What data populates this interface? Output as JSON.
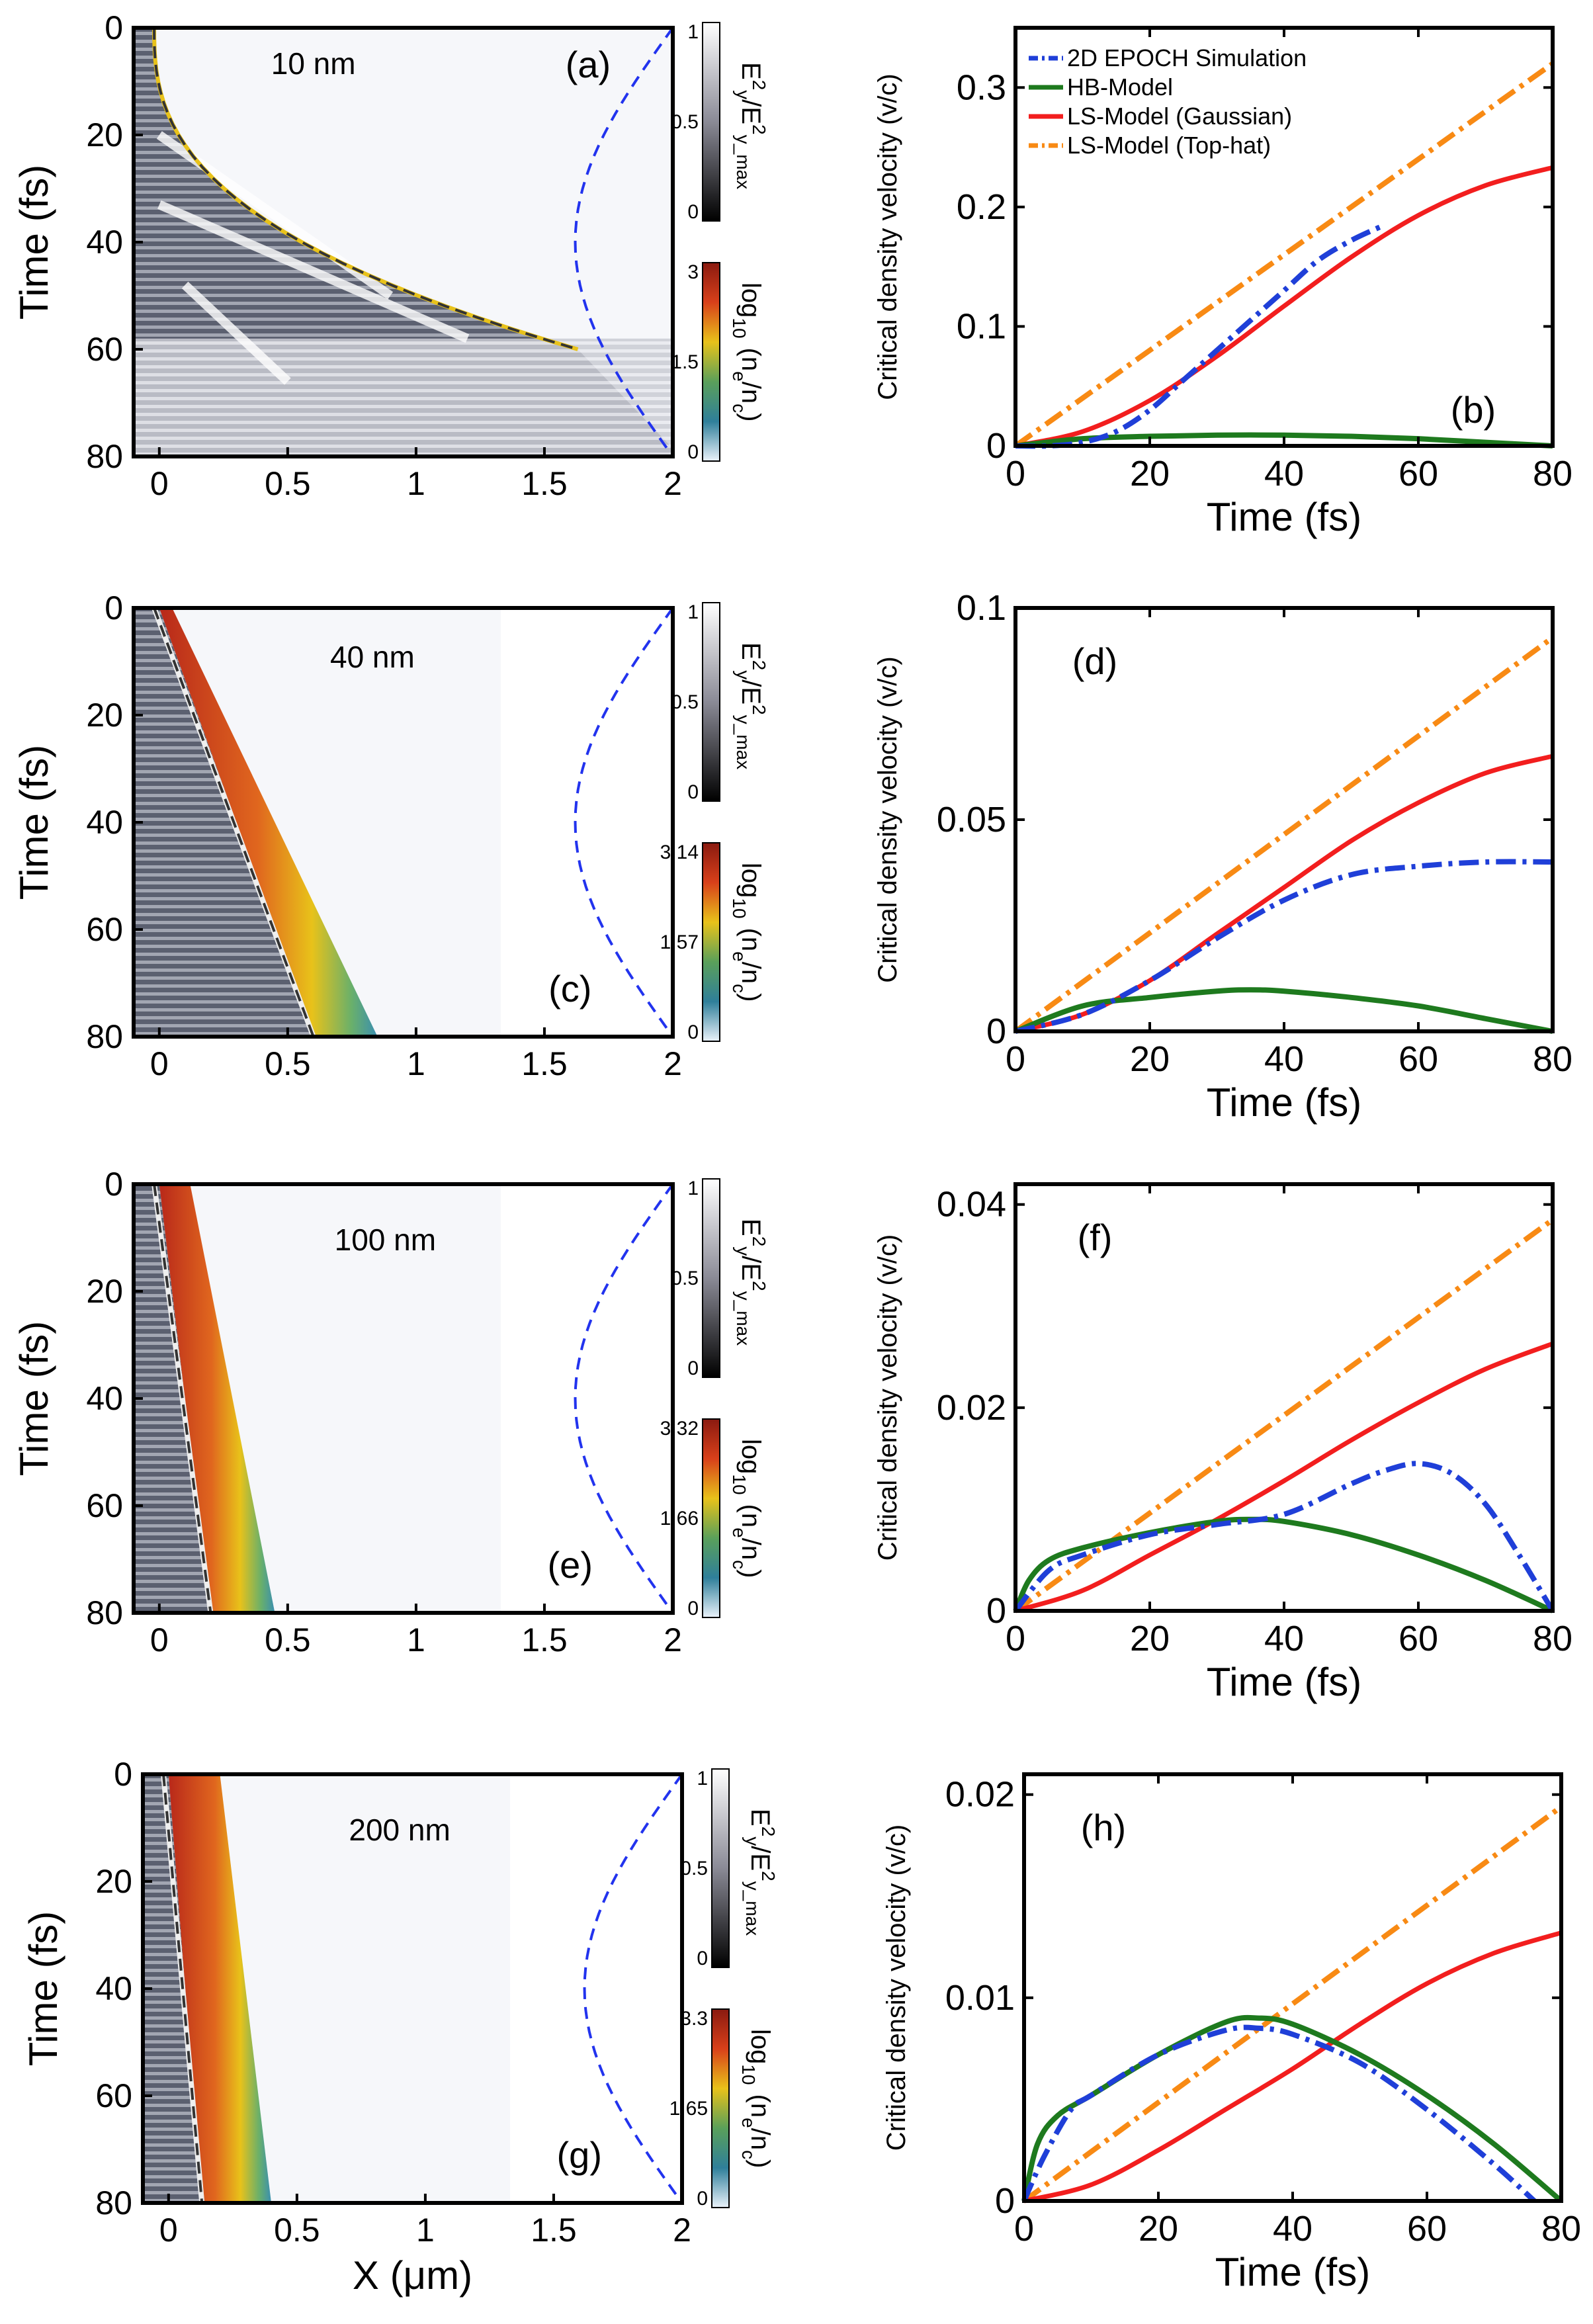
{
  "figure": {
    "panels_left": [
      {
        "label": "(a)",
        "thickness_label": "10 nm",
        "xlabel": "",
        "ylabel": "Time (fs)",
        "xticks": [
          "0",
          "0.5",
          "1",
          "1.5",
          "2"
        ],
        "yticks": [
          "0",
          "20",
          "40",
          "60",
          "80"
        ],
        "cb_top": {
          "ticks": [
            "1",
            "0.5",
            "0"
          ],
          "label_main": "E",
          "label_sup": "2",
          "label_sub": "y",
          "label_mid": "/E",
          "label_sup2": "2",
          "label_sub2": "y_max"
        },
        "cb_bottom": {
          "ticks": [
            "3",
            "1.5",
            "0"
          ],
          "label_main": "log",
          "label_sub": "10",
          "label_frac": "(n",
          "label_frac_sub": "e",
          "label_slash": "/n",
          "label_slash_sub": "c",
          "label_close": ")"
        },
        "front_x_at": {
          "t0": 0.0,
          "t20": 0.12,
          "t40": 0.55,
          "t60": 1.6
        },
        "max_density_log": 3
      },
      {
        "label": "(c)",
        "thickness_label": "40 nm",
        "xlabel": "",
        "ylabel": "Time (fs)",
        "xticks": [
          "0",
          "0.5",
          "1",
          "1.5",
          "2"
        ],
        "yticks": [
          "0",
          "20",
          "40",
          "60",
          "80"
        ],
        "cb_top": {
          "ticks": [
            "1",
            "0.5",
            "0"
          ],
          "label_main": "E",
          "label_sup": "2",
          "label_sub": "y",
          "label_mid": "/E",
          "label_sup2": "2",
          "label_sub2": "y_max"
        },
        "cb_bottom": {
          "ticks": [
            "3.14",
            "1.57",
            "0"
          ],
          "label_main": "log",
          "label_sub": "10",
          "label_frac": "(n",
          "label_frac_sub": "e",
          "label_slash": "/n",
          "label_slash_sub": "c",
          "label_close": ")"
        },
        "max_density_log": 3.14
      },
      {
        "label": "(e)",
        "thickness_label": "100 nm",
        "xlabel": "",
        "ylabel": "Time (fs)",
        "xticks": [
          "0",
          "0.5",
          "1",
          "1.5",
          "2"
        ],
        "yticks": [
          "0",
          "20",
          "40",
          "60",
          "80"
        ],
        "cb_top": {
          "ticks": [
            "1",
            "0.5",
            "0"
          ],
          "label_main": "E",
          "label_sup": "2",
          "label_sub": "y",
          "label_mid": "/E",
          "label_sup2": "2",
          "label_sub2": "y_max"
        },
        "cb_bottom": {
          "ticks": [
            "3.32",
            "1.66",
            "0"
          ],
          "label_main": "log",
          "label_sub": "10",
          "label_frac": "(n",
          "label_frac_sub": "e",
          "label_slash": "/n",
          "label_slash_sub": "c",
          "label_close": ")"
        },
        "max_density_log": 3.32
      },
      {
        "label": "(g)",
        "thickness_label": "200 nm",
        "xlabel": "X (μm)",
        "ylabel": "Time (fs)",
        "xticks": [
          "0",
          "0.5",
          "1",
          "1.5",
          "2"
        ],
        "yticks": [
          "0",
          "20",
          "40",
          "60",
          "80"
        ],
        "cb_top": {
          "ticks": [
            "1",
            "0.5",
            "0"
          ],
          "label_main": "E",
          "label_sup": "2",
          "label_sub": "y",
          "label_mid": "/E",
          "label_sup2": "2",
          "label_sub2": "y_max"
        },
        "cb_bottom": {
          "ticks": [
            "3.3",
            "1.65",
            "0"
          ],
          "label_main": "log",
          "label_sub": "10",
          "label_frac": "(n",
          "label_frac_sub": "e",
          "label_slash": "/n",
          "label_slash_sub": "c",
          "label_close": ")"
        },
        "max_density_log": 3.3
      }
    ]
  },
  "chart_data": [
    {
      "type": "line",
      "panel": "(b)",
      "title": "",
      "xlabel": "Time (fs)",
      "ylabel": "Critical density velocity (v/c)",
      "xlim": [
        0,
        80
      ],
      "ylim": [
        0,
        0.35
      ],
      "xticks": [
        0,
        20,
        40,
        60,
        80
      ],
      "yticks": [
        0,
        0.1,
        0.2,
        0.3
      ],
      "ytick_labels": [
        "0",
        "0.1",
        "0.2",
        "0.3"
      ],
      "legend": [
        "2D EPOCH Simulation",
        "HB-Model",
        "LS-Model (Gaussian)",
        "LS-Model (Top-hat)"
      ],
      "legend_position": "top-left",
      "series": [
        {
          "name": "2D EPOCH Simulation",
          "x": [
            0,
            5,
            10,
            15,
            20,
            25,
            30,
            35,
            40,
            45,
            50,
            55
          ],
          "y": [
            0,
            0.0,
            0.003,
            0.012,
            0.03,
            0.055,
            0.08,
            0.105,
            0.13,
            0.155,
            0.172,
            0.185
          ]
        },
        {
          "name": "HB-Model",
          "x": [
            0,
            10,
            20,
            30,
            40,
            50,
            60,
            70,
            80
          ],
          "y": [
            0,
            0.006,
            0.008,
            0.009,
            0.009,
            0.008,
            0.006,
            0.003,
            0
          ]
        },
        {
          "name": "LS-Model (Gaussian)",
          "x": [
            0,
            10,
            20,
            30,
            40,
            50,
            60,
            70,
            80
          ],
          "y": [
            0,
            0.012,
            0.038,
            0.075,
            0.117,
            0.158,
            0.193,
            0.218,
            0.233
          ]
        },
        {
          "name": "LS-Model (Top-hat)",
          "x": [
            0,
            80
          ],
          "y": [
            0,
            0.32
          ]
        }
      ]
    },
    {
      "type": "line",
      "panel": "(d)",
      "title": "",
      "xlabel": "Time (fs)",
      "ylabel": "Critical density velocity (v/c)",
      "xlim": [
        0,
        80
      ],
      "ylim": [
        0,
        0.1
      ],
      "xticks": [
        0,
        20,
        40,
        60,
        80
      ],
      "yticks": [
        0,
        0.05,
        0.1
      ],
      "ytick_labels": [
        "0",
        "0.05",
        "0.1"
      ],
      "series": [
        {
          "name": "2D EPOCH Simulation",
          "x": [
            0,
            10,
            20,
            30,
            40,
            50,
            60,
            70,
            80
          ],
          "y": [
            0,
            0.004,
            0.012,
            0.022,
            0.031,
            0.037,
            0.039,
            0.04,
            0.04
          ]
        },
        {
          "name": "HB-Model",
          "x": [
            0,
            10,
            20,
            30,
            35,
            40,
            50,
            60,
            70,
            80
          ],
          "y": [
            0,
            0.006,
            0.008,
            0.0095,
            0.0098,
            0.0095,
            0.008,
            0.006,
            0.003,
            0
          ]
        },
        {
          "name": "LS-Model (Gaussian)",
          "x": [
            0,
            10,
            20,
            30,
            40,
            50,
            60,
            70,
            80
          ],
          "y": [
            0,
            0.004,
            0.012,
            0.023,
            0.034,
            0.045,
            0.054,
            0.061,
            0.065
          ]
        },
        {
          "name": "LS-Model (Top-hat)",
          "x": [
            0,
            80
          ],
          "y": [
            0,
            0.093
          ]
        }
      ]
    },
    {
      "type": "line",
      "panel": "(f)",
      "title": "",
      "xlabel": "Time (fs)",
      "ylabel": "Critical density velocity (v/c)",
      "xlim": [
        0,
        80
      ],
      "ylim": [
        0,
        0.042
      ],
      "xticks": [
        0,
        20,
        40,
        60,
        80
      ],
      "yticks": [
        0,
        0.02,
        0.04
      ],
      "ytick_labels": [
        "0",
        "0.02",
        "0.04"
      ],
      "series": [
        {
          "name": "2D EPOCH Simulation",
          "x": [
            0,
            5,
            10,
            20,
            30,
            40,
            50,
            55,
            60,
            65,
            70,
            75,
            80
          ],
          "y": [
            0,
            0.004,
            0.0055,
            0.0075,
            0.0085,
            0.0095,
            0.0125,
            0.0138,
            0.0145,
            0.0135,
            0.0105,
            0.0055,
            0
          ]
        },
        {
          "name": "HB-Model",
          "x": [
            0,
            2,
            5,
            10,
            20,
            30,
            35,
            40,
            50,
            60,
            70,
            80
          ],
          "y": [
            0,
            0.003,
            0.005,
            0.0062,
            0.0077,
            0.0088,
            0.009,
            0.0088,
            0.0075,
            0.0055,
            0.003,
            0
          ]
        },
        {
          "name": "LS-Model (Gaussian)",
          "x": [
            0,
            10,
            20,
            30,
            40,
            50,
            60,
            70,
            80
          ],
          "y": [
            0,
            0.002,
            0.0055,
            0.009,
            0.0128,
            0.0168,
            0.0205,
            0.0238,
            0.0263
          ]
        },
        {
          "name": "LS-Model (Top-hat)",
          "x": [
            0,
            80
          ],
          "y": [
            0,
            0.0385
          ]
        }
      ]
    },
    {
      "type": "line",
      "panel": "(h)",
      "title": "",
      "xlabel": "Time (fs)",
      "ylabel": "Critical density velocity (v/c)",
      "xlim": [
        0,
        80
      ],
      "ylim": [
        0,
        0.021
      ],
      "xticks": [
        0,
        20,
        40,
        60,
        80
      ],
      "yticks": [
        0,
        0.01,
        0.02
      ],
      "ytick_labels": [
        "0",
        "0.01",
        "0.02"
      ],
      "series": [
        {
          "name": "2D EPOCH Simulation",
          "x": [
            0,
            3,
            7,
            10,
            20,
            30,
            35,
            40,
            50,
            60,
            70,
            76
          ],
          "y": [
            0,
            0.0022,
            0.0045,
            0.0052,
            0.0072,
            0.0084,
            0.0085,
            0.0082,
            0.0068,
            0.0045,
            0.0018,
            0
          ]
        },
        {
          "name": "HB-Model",
          "x": [
            0,
            2,
            5,
            10,
            20,
            30,
            35,
            40,
            50,
            60,
            70,
            80
          ],
          "y": [
            0,
            0.0028,
            0.0042,
            0.0052,
            0.0072,
            0.0088,
            0.009,
            0.0087,
            0.0072,
            0.0052,
            0.0028,
            0
          ]
        },
        {
          "name": "LS-Model (Gaussian)",
          "x": [
            0,
            10,
            20,
            30,
            40,
            50,
            60,
            70,
            80
          ],
          "y": [
            0,
            0.0008,
            0.0025,
            0.0045,
            0.0065,
            0.0087,
            0.0107,
            0.0122,
            0.0132
          ]
        },
        {
          "name": "LS-Model (Top-hat)",
          "x": [
            0,
            80
          ],
          "y": [
            0,
            0.0194
          ]
        }
      ]
    }
  ],
  "colors": {
    "epoch": "#1f3fd8",
    "hb": "#1e7a1e",
    "ls_gauss": "#f21e1e",
    "ls_tophat": "#f88a14",
    "pulse": "#2233ee"
  },
  "right_labels": [
    "(b)",
    "(d)",
    "(f)",
    "(h)"
  ]
}
